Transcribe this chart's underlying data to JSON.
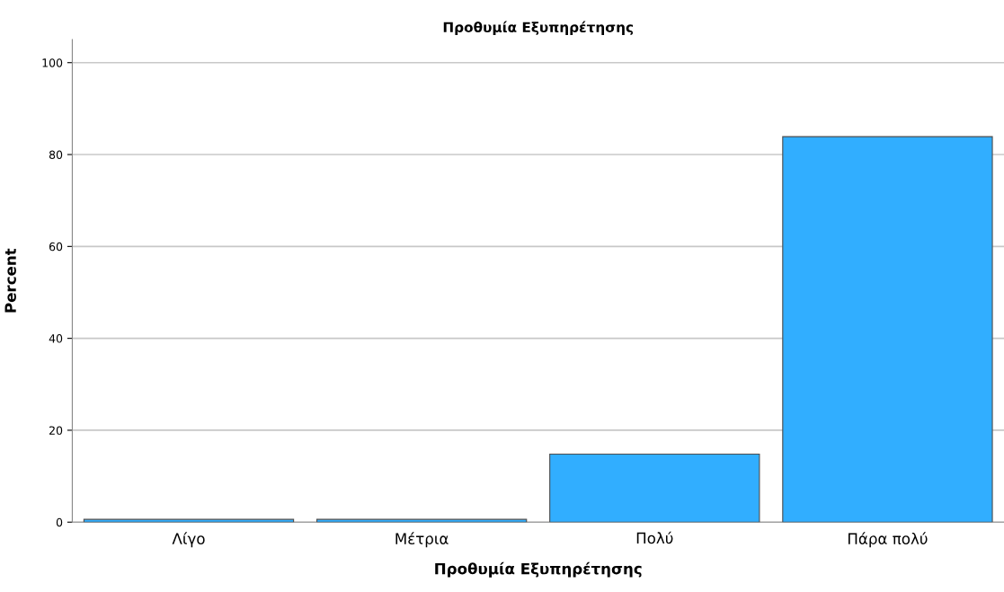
{
  "chart_data": {
    "type": "bar",
    "title": "Προθυμία Εξυπηρέτησης",
    "xlabel": "Προθυμία Εξυπηρέτησης",
    "ylabel": "Percent",
    "categories": [
      "Λίγο",
      "Μέτρια",
      "Πολύ",
      "Πάρα πολύ"
    ],
    "values": [
      0.6,
      0.6,
      14.8,
      83.9
    ],
    "color": "#31aeff",
    "ylim": [
      0,
      105
    ],
    "yticks": [
      0,
      20,
      40,
      60,
      80,
      100
    ],
    "grid": "y"
  }
}
